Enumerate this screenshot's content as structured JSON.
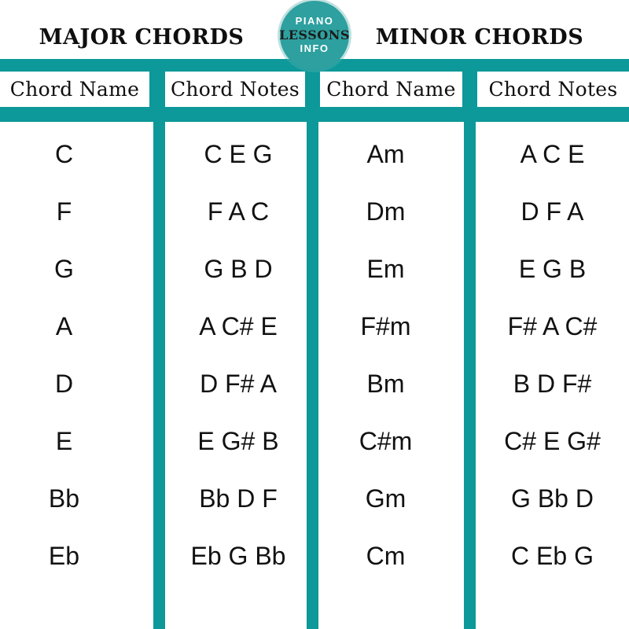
{
  "badge": {
    "lines": [
      "PIANO",
      "LESSONS",
      "INFO"
    ]
  },
  "titles": {
    "major": "MAJOR CHORDS",
    "minor": "MINOR CHORDS"
  },
  "columns": [
    "Chord Name",
    "Chord Notes",
    "Chord Name",
    "Chord Notes"
  ],
  "major": {
    "rows": [
      {
        "name": "C",
        "notes": "C E G"
      },
      {
        "name": "F",
        "notes": "F A C"
      },
      {
        "name": "G",
        "notes": "G B D"
      },
      {
        "name": "A",
        "notes": "A C# E"
      },
      {
        "name": "D",
        "notes": "D F# A"
      },
      {
        "name": "E",
        "notes": "E G# B"
      },
      {
        "name": "Bb",
        "notes": "Bb D F"
      },
      {
        "name": "Eb",
        "notes": "Eb G Bb"
      }
    ]
  },
  "minor": {
    "rows": [
      {
        "name": "Am",
        "notes": "A C E"
      },
      {
        "name": "Dm",
        "notes": "D F A"
      },
      {
        "name": "Em",
        "notes": "E G B"
      },
      {
        "name": "F#m",
        "notes": "F# A C#"
      },
      {
        "name": "Bm",
        "notes": "B D F#"
      },
      {
        "name": "C#m",
        "notes": "C# E G#"
      },
      {
        "name": "Gm",
        "notes": "G Bb D"
      },
      {
        "name": "Cm",
        "notes": "C Eb G"
      }
    ]
  },
  "colors": {
    "teal": "#0d9899",
    "badge-teal": "#2da09f",
    "text": "#111111",
    "title": "#0f0f0f"
  },
  "chart_data": [
    {
      "type": "table",
      "title": "MAJOR CHORDS",
      "columns": [
        "Chord Name",
        "Chord Notes"
      ],
      "rows": [
        [
          "C",
          "C E G"
        ],
        [
          "F",
          "F A C"
        ],
        [
          "G",
          "G B D"
        ],
        [
          "A",
          "A C# E"
        ],
        [
          "D",
          "D F# A"
        ],
        [
          "E",
          "E G# B"
        ],
        [
          "Bb",
          "Bb D F"
        ],
        [
          "Eb",
          "Eb G Bb"
        ]
      ]
    },
    {
      "type": "table",
      "title": "MINOR CHORDS",
      "columns": [
        "Chord Name",
        "Chord Notes"
      ],
      "rows": [
        [
          "Am",
          "A C E"
        ],
        [
          "Dm",
          "D F A"
        ],
        [
          "Em",
          "E G B"
        ],
        [
          "F#m",
          "F# A C#"
        ],
        [
          "Bm",
          "B D F#"
        ],
        [
          "C#m",
          "C# E G#"
        ],
        [
          "Gm",
          "G Bb D"
        ],
        [
          "Cm",
          "C Eb G"
        ]
      ]
    }
  ]
}
